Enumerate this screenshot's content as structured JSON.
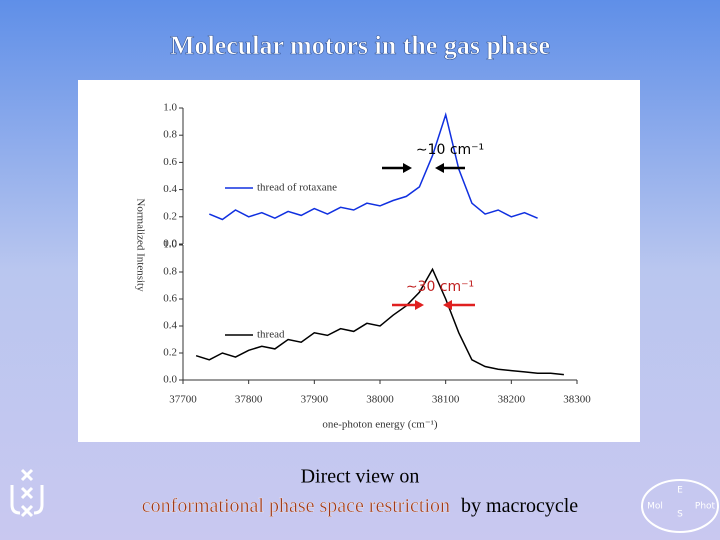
{
  "title": "Molecular motors in the gas phase",
  "caption": {
    "line1": "Direct view on",
    "highlight": "conformational phase space restriction",
    "rest": "by macrocycle"
  },
  "logo": {
    "top": "E",
    "left": "Mol",
    "right": "Phot",
    "bottom": "S"
  },
  "chart_data": [
    {
      "type": "line",
      "ylabel": "Normalized Intensity",
      "annotation": "∼10 cm⁻¹",
      "x": [
        37740,
        37760,
        37780,
        37800,
        37820,
        37840,
        37860,
        37880,
        37900,
        37920,
        37940,
        37960,
        37980,
        38000,
        38020,
        38040,
        38060,
        38080,
        38100,
        38120,
        38140,
        38160,
        38180,
        38200,
        38220,
        38240
      ],
      "series": [
        {
          "name": "thread of rotaxane",
          "color": "#1030e0",
          "values": [
            0.22,
            0.18,
            0.25,
            0.2,
            0.23,
            0.19,
            0.24,
            0.21,
            0.26,
            0.22,
            0.27,
            0.25,
            0.3,
            0.28,
            0.32,
            0.35,
            0.42,
            0.65,
            0.95,
            0.55,
            0.3,
            0.22,
            0.25,
            0.2,
            0.23,
            0.19
          ]
        }
      ],
      "xlim": [
        37700,
        38300
      ],
      "ylim": [
        0,
        1
      ],
      "yticks": [
        {
          "value": 0,
          "label": "0.0"
        },
        {
          "value": 0.2,
          "label": "0.2"
        },
        {
          "value": 0.4,
          "label": "0.4"
        },
        {
          "value": 0.6,
          "label": "0.6"
        },
        {
          "value": 0.8,
          "label": "0.8"
        },
        {
          "value": 1,
          "label": "1.0"
        }
      ]
    },
    {
      "type": "line",
      "xlabel": "one-photon energy (cm⁻¹)",
      "annotation": "∼30 cm⁻¹",
      "x": [
        37720,
        37740,
        37760,
        37780,
        37800,
        37820,
        37840,
        37860,
        37880,
        37900,
        37920,
        37940,
        37960,
        37980,
        38000,
        38020,
        38040,
        38060,
        38080,
        38100,
        38120,
        38140,
        38160,
        38180,
        38200,
        38220,
        38240,
        38260,
        38280
      ],
      "series": [
        {
          "name": "thread",
          "color": "#000000",
          "values": [
            0.18,
            0.15,
            0.2,
            0.17,
            0.22,
            0.25,
            0.23,
            0.3,
            0.28,
            0.35,
            0.33,
            0.38,
            0.36,
            0.42,
            0.4,
            0.48,
            0.55,
            0.65,
            0.82,
            0.6,
            0.35,
            0.15,
            0.1,
            0.08,
            0.07,
            0.06,
            0.05,
            0.05,
            0.04
          ]
        }
      ],
      "xlim": [
        37700,
        38300
      ],
      "ylim": [
        0,
        1
      ],
      "xticks": [
        37700,
        37800,
        37900,
        38000,
        38100,
        38200,
        38300
      ],
      "yticks": [
        {
          "value": 0,
          "label": "0.0"
        },
        {
          "value": 0.2,
          "label": "0.2"
        },
        {
          "value": 0.4,
          "label": "0.4"
        },
        {
          "value": 0.6,
          "label": "0.6"
        },
        {
          "value": 0.8,
          "label": "0.8"
        },
        {
          "value": 1,
          "label": "1.0"
        }
      ]
    }
  ]
}
